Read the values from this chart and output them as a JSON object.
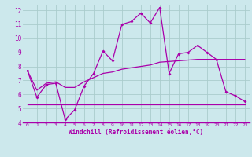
{
  "xlabel": "Windchill (Refroidissement éolien,°C)",
  "background_color": "#cce8ec",
  "grid_color": "#aacccc",
  "line_color": "#aa00aa",
  "axis_bg": "#cce8ec",
  "xlim": [
    -0.5,
    23.5
  ],
  "ylim": [
    4,
    12.4
  ],
  "yticks": [
    4,
    5,
    6,
    7,
    8,
    9,
    10,
    11,
    12
  ],
  "xticks": [
    0,
    1,
    2,
    3,
    4,
    5,
    6,
    7,
    8,
    9,
    10,
    11,
    12,
    13,
    14,
    15,
    16,
    17,
    18,
    19,
    20,
    21,
    22,
    23
  ],
  "series1_x": [
    0,
    1,
    2,
    3,
    4,
    5,
    6,
    7,
    8,
    9,
    10,
    11,
    12,
    13,
    14,
    15,
    16,
    17,
    18,
    19,
    20,
    21,
    22,
    23
  ],
  "series1_y": [
    7.7,
    5.8,
    6.7,
    6.8,
    4.2,
    4.9,
    6.6,
    7.5,
    9.1,
    8.4,
    11.0,
    11.2,
    11.8,
    11.1,
    12.2,
    7.5,
    8.9,
    9.0,
    9.5,
    9.0,
    8.5,
    6.2,
    5.9,
    5.5
  ],
  "series2_x": [
    0,
    1,
    2,
    3,
    4,
    5,
    6,
    7,
    8,
    9,
    10,
    11,
    12,
    13,
    14,
    15,
    16,
    17,
    18,
    19,
    20,
    21,
    22,
    23
  ],
  "series2_y": [
    7.7,
    6.3,
    6.8,
    6.9,
    6.5,
    6.5,
    6.9,
    7.2,
    7.5,
    7.6,
    7.8,
    7.9,
    8.0,
    8.1,
    8.3,
    8.35,
    8.4,
    8.45,
    8.5,
    8.5,
    8.5,
    8.5,
    8.5,
    8.5
  ],
  "series3_x": [
    0,
    23
  ],
  "series3_y": [
    5.3,
    5.3
  ]
}
